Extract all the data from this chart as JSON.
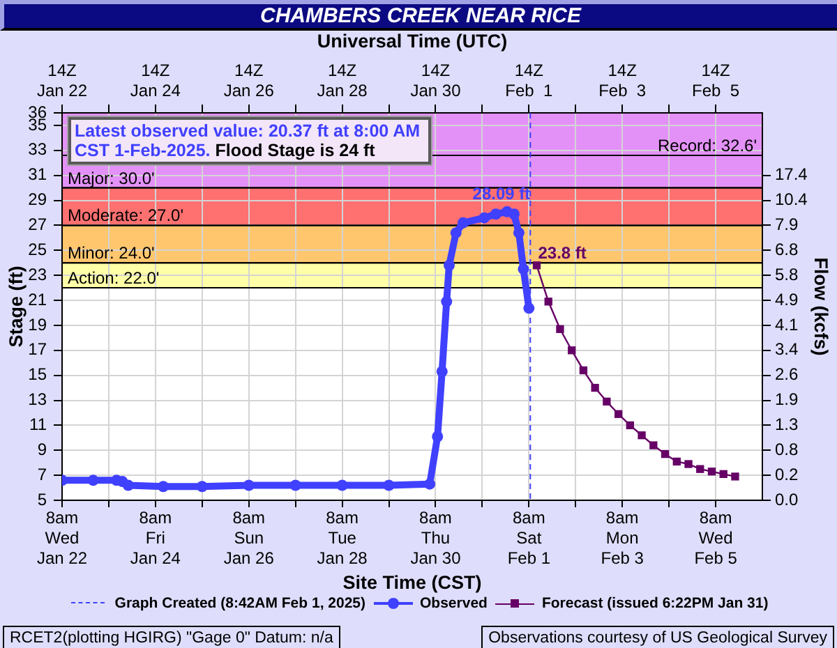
{
  "chart_data": {
    "type": "line",
    "title": "CHAMBERS CREEK NEAR RICE",
    "x2label": "Universal Time (UTC)",
    "xlabel": "Site Time (CST)",
    "ylabel": "Stage (ft)",
    "y2label": "Flow (kcfs)",
    "xlim": [
      "2025-01-22T08:00",
      "2025-02-06T08:00"
    ],
    "xticks": [
      {
        "value": "2025-01-22T08:00",
        "label": "8am\nWed\nJan 22"
      },
      {
        "value": "2025-01-23T08:00",
        "label": null
      },
      {
        "value": "2025-01-24T08:00",
        "label": "8am\nFri\nJan 24"
      },
      {
        "value": "2025-01-25T08:00",
        "label": null
      },
      {
        "value": "2025-01-26T08:00",
        "label": "8am\nSun\nJan 26"
      },
      {
        "value": "2025-01-27T08:00",
        "label": null
      },
      {
        "value": "2025-01-28T08:00",
        "label": "8am\nTue\nJan 28"
      },
      {
        "value": "2025-01-29T08:00",
        "label": null
      },
      {
        "value": "2025-01-30T08:00",
        "label": "8am\nThu\nJan 30"
      },
      {
        "value": "2025-01-31T08:00",
        "label": null
      },
      {
        "value": "2025-02-01T08:00",
        "label": "8am\nSat\nFeb 1"
      },
      {
        "value": "2025-02-02T08:00",
        "label": null
      },
      {
        "value": "2025-02-03T08:00",
        "label": "8am\nMon\nFeb 3"
      },
      {
        "value": "2025-02-04T08:00",
        "label": null
      },
      {
        "value": "2025-02-05T08:00",
        "label": "8am\nWed\nFeb 5"
      }
    ],
    "x2lim": [
      "2025-01-22T14:00",
      "2025-02-06T14:00"
    ],
    "x2ticks": [
      {
        "value": "2025-01-22T14:00",
        "label": "14Z\nJan 22"
      },
      {
        "value": "2025-01-23T14:00",
        "label": null
      },
      {
        "value": "2025-01-24T14:00",
        "label": "14Z\nJan 24"
      },
      {
        "value": "2025-01-25T14:00",
        "label": null
      },
      {
        "value": "2025-01-26T14:00",
        "label": "14Z\nJan 26"
      },
      {
        "value": "2025-01-27T14:00",
        "label": null
      },
      {
        "value": "2025-01-28T14:00",
        "label": "14Z\nJan 28"
      },
      {
        "value": "2025-01-29T14:00",
        "label": null
      },
      {
        "value": "2025-01-30T14:00",
        "label": "14Z\nJan 30"
      },
      {
        "value": "2025-01-31T14:00",
        "label": null
      },
      {
        "value": "2025-02-01T14:00",
        "label": "14Z\nFeb  1"
      },
      {
        "value": "2025-02-02T14:00",
        "label": null
      },
      {
        "value": "2025-02-03T14:00",
        "label": "14Z\nFeb  3"
      },
      {
        "value": "2025-02-04T14:00",
        "label": null
      },
      {
        "value": "2025-02-05T14:00",
        "label": "14Z\nFeb  5"
      }
    ],
    "ylim": [
      5,
      36
    ],
    "yticks": [
      5,
      7,
      9,
      11,
      13,
      15,
      17,
      19,
      21,
      23,
      25,
      27,
      29,
      31,
      33,
      35,
      36
    ],
    "y2_categories": [
      null,
      null,
      null,
      null,
      null,
      "17.4",
      null,
      "10.4",
      null,
      "7.9",
      null,
      "6.8",
      null,
      "5.8",
      null,
      "4.9",
      null,
      "4.1",
      null,
      "3.4",
      null,
      "2.6",
      null,
      "1.9",
      null,
      "1.3",
      null,
      "0.8",
      null,
      "0.2",
      null,
      "0.0"
    ],
    "series": [
      {
        "name": "Observed",
        "color": "#4040ff",
        "marker": "circle",
        "x": [
          "2025-01-22T08:00",
          "2025-01-23T00:00",
          "2025-01-23T12:00",
          "2025-01-23T15:00",
          "2025-01-23T18:00",
          "2025-01-24T12:00",
          "2025-01-25T08:00",
          "2025-01-26T08:00",
          "2025-01-27T08:00",
          "2025-01-28T08:00",
          "2025-01-29T08:00",
          "2025-01-30T05:00",
          "2025-01-30T09:00",
          "2025-01-30T11:20",
          "2025-01-30T13:40",
          "2025-01-30T15:00",
          "2025-01-30T18:30",
          "2025-01-30T22:10",
          "2025-01-31T09:00",
          "2025-01-31T15:00",
          "2025-01-31T20:45",
          "2025-02-01T00:20",
          "2025-02-01T02:50",
          "2025-02-01T05:10",
          "2025-02-01T08:00"
        ],
        "values": [
          6.6,
          6.6,
          6.6,
          6.5,
          6.2,
          6.1,
          6.1,
          6.2,
          6.2,
          6.2,
          6.2,
          6.3,
          10.1,
          15.3,
          20.9,
          23.8,
          26.4,
          27.2,
          27.6,
          27.9,
          28.09,
          27.9,
          26.4,
          23.5,
          20.37
        ]
      },
      {
        "name": "Forecast (issued 6:22PM Jan 31)",
        "color": "#660066",
        "marker": "square",
        "x": [
          "2025-02-01T12:00",
          "2025-02-01T18:00",
          "2025-02-02T00:00",
          "2025-02-02T06:00",
          "2025-02-02T12:00",
          "2025-02-02T18:00",
          "2025-02-03T00:00",
          "2025-02-03T06:00",
          "2025-02-03T12:00",
          "2025-02-03T18:00",
          "2025-02-04T00:00",
          "2025-02-04T06:00",
          "2025-02-04T12:00",
          "2025-02-04T18:00",
          "2025-02-05T00:00",
          "2025-02-05T06:00",
          "2025-02-05T12:00",
          "2025-02-05T18:00"
        ],
        "values": [
          23.8,
          20.9,
          18.7,
          17.0,
          15.4,
          14.0,
          12.9,
          11.9,
          11.0,
          10.2,
          9.4,
          8.7,
          8.1,
          7.9,
          7.5,
          7.3,
          7.1,
          6.9
        ]
      }
    ],
    "bands": [
      {
        "axis": "y",
        "from": 22,
        "to": 24,
        "label": "Action: 22.0'",
        "color": "#ffffa8"
      },
      {
        "axis": "y",
        "from": 24,
        "to": 27,
        "label": "Minor: 24.0'",
        "color": "#ffc66e"
      },
      {
        "axis": "y",
        "from": 27,
        "to": 30,
        "label": "Moderate: 27.0'",
        "color": "#ff7070"
      },
      {
        "axis": "y",
        "from": 30,
        "to": 36,
        "label": "Major: 30.0'",
        "color": "#e391f7"
      }
    ],
    "ref_lines": [
      {
        "axis": "y",
        "value": 32.6,
        "label": "Record: 32.6'",
        "color": "#000000"
      },
      {
        "axis": "x",
        "value": "2025-02-01T08:42",
        "label": "Graph Created (8:42AM Feb 1, 2025)",
        "color": "#4040ff",
        "line_style": "dashed"
      }
    ],
    "annotations": [
      "Latest observed value: 20.37 ft at 8:00 AM",
      "CST 1-Feb-2025.",
      "Flood Stage is 24 ft",
      {
        "text": "28.09 ft",
        "x": "2025-01-31T20:45",
        "y": 28.09
      },
      {
        "text": "23.8 ft",
        "x": "2025-02-01T12:00",
        "y": 23.8
      },
      "RCET2(plotting HGIRG) \"Gage 0\" Datum: n/a",
      "Observations courtesy of US Geological Survey"
    ],
    "grid": true,
    "legend": "bottom"
  }
}
